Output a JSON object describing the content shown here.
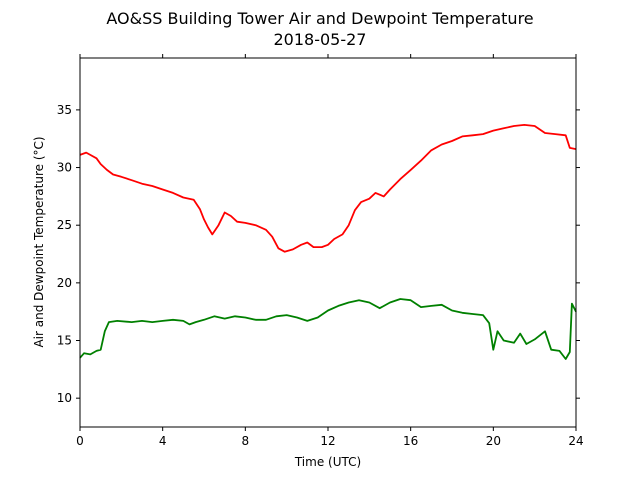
{
  "chart_data": {
    "type": "line",
    "title": "AO&SS Building Tower Air and Dewpoint Temperature",
    "subtitle": "2018-05-27",
    "xlabel": "Time (UTC)",
    "ylabel": "Air and Dewpoint Temperature (°C)",
    "xlim": [
      0,
      24
    ],
    "ylim": [
      7.5,
      39.5
    ],
    "x_ticks": [
      0,
      4,
      8,
      12,
      16,
      20,
      24
    ],
    "y_ticks": [
      10,
      15,
      20,
      25,
      30,
      35
    ],
    "grid": false,
    "legend": "none",
    "series": [
      {
        "color": "#ff0000",
        "points": [
          [
            0.0,
            31.1
          ],
          [
            0.3,
            31.3
          ],
          [
            0.5,
            31.1
          ],
          [
            0.8,
            30.8
          ],
          [
            1.0,
            30.3
          ],
          [
            1.3,
            29.8
          ],
          [
            1.6,
            29.4
          ],
          [
            2.0,
            29.2
          ],
          [
            2.5,
            28.9
          ],
          [
            3.0,
            28.6
          ],
          [
            3.5,
            28.4
          ],
          [
            4.0,
            28.1
          ],
          [
            4.5,
            27.8
          ],
          [
            5.0,
            27.4
          ],
          [
            5.5,
            27.2
          ],
          [
            5.8,
            26.4
          ],
          [
            6.0,
            25.5
          ],
          [
            6.2,
            24.8
          ],
          [
            6.4,
            24.2
          ],
          [
            6.7,
            25.0
          ],
          [
            7.0,
            26.1
          ],
          [
            7.3,
            25.8
          ],
          [
            7.6,
            25.3
          ],
          [
            8.0,
            25.2
          ],
          [
            8.5,
            25.0
          ],
          [
            9.0,
            24.6
          ],
          [
            9.3,
            24.0
          ],
          [
            9.6,
            23.0
          ],
          [
            9.9,
            22.7
          ],
          [
            10.3,
            22.9
          ],
          [
            10.7,
            23.3
          ],
          [
            11.0,
            23.5
          ],
          [
            11.3,
            23.1
          ],
          [
            11.7,
            23.1
          ],
          [
            12.0,
            23.3
          ],
          [
            12.3,
            23.8
          ],
          [
            12.7,
            24.2
          ],
          [
            13.0,
            25.0
          ],
          [
            13.3,
            26.3
          ],
          [
            13.6,
            27.0
          ],
          [
            14.0,
            27.3
          ],
          [
            14.3,
            27.8
          ],
          [
            14.7,
            27.5
          ],
          [
            15.0,
            28.1
          ],
          [
            15.5,
            29.0
          ],
          [
            16.0,
            29.8
          ],
          [
            16.5,
            30.6
          ],
          [
            17.0,
            31.5
          ],
          [
            17.5,
            32.0
          ],
          [
            18.0,
            32.3
          ],
          [
            18.5,
            32.7
          ],
          [
            19.0,
            32.8
          ],
          [
            19.5,
            32.9
          ],
          [
            20.0,
            33.2
          ],
          [
            20.5,
            33.4
          ],
          [
            21.0,
            33.6
          ],
          [
            21.5,
            33.7
          ],
          [
            22.0,
            33.6
          ],
          [
            22.5,
            33.0
          ],
          [
            23.0,
            32.9
          ],
          [
            23.5,
            32.8
          ],
          [
            23.7,
            31.7
          ],
          [
            24.0,
            31.6
          ]
        ]
      },
      {
        "color": "#008000",
        "points": [
          [
            0.0,
            13.5
          ],
          [
            0.2,
            13.9
          ],
          [
            0.5,
            13.8
          ],
          [
            0.8,
            14.1
          ],
          [
            1.0,
            14.2
          ],
          [
            1.2,
            15.8
          ],
          [
            1.4,
            16.6
          ],
          [
            1.8,
            16.7
          ],
          [
            2.5,
            16.6
          ],
          [
            3.0,
            16.7
          ],
          [
            3.5,
            16.6
          ],
          [
            4.0,
            16.7
          ],
          [
            4.5,
            16.8
          ],
          [
            5.0,
            16.7
          ],
          [
            5.3,
            16.4
          ],
          [
            5.6,
            16.6
          ],
          [
            6.0,
            16.8
          ],
          [
            6.5,
            17.1
          ],
          [
            7.0,
            16.9
          ],
          [
            7.5,
            17.1
          ],
          [
            8.0,
            17.0
          ],
          [
            8.5,
            16.8
          ],
          [
            9.0,
            16.8
          ],
          [
            9.5,
            17.1
          ],
          [
            10.0,
            17.2
          ],
          [
            10.5,
            17.0
          ],
          [
            11.0,
            16.7
          ],
          [
            11.5,
            17.0
          ],
          [
            12.0,
            17.6
          ],
          [
            12.5,
            18.0
          ],
          [
            13.0,
            18.3
          ],
          [
            13.5,
            18.5
          ],
          [
            14.0,
            18.3
          ],
          [
            14.5,
            17.8
          ],
          [
            15.0,
            18.3
          ],
          [
            15.5,
            18.6
          ],
          [
            16.0,
            18.5
          ],
          [
            16.5,
            17.9
          ],
          [
            17.0,
            18.0
          ],
          [
            17.5,
            18.1
          ],
          [
            18.0,
            17.6
          ],
          [
            18.5,
            17.4
          ],
          [
            19.0,
            17.3
          ],
          [
            19.5,
            17.2
          ],
          [
            19.8,
            16.5
          ],
          [
            20.0,
            14.2
          ],
          [
            20.2,
            15.8
          ],
          [
            20.5,
            15.0
          ],
          [
            21.0,
            14.8
          ],
          [
            21.3,
            15.6
          ],
          [
            21.6,
            14.7
          ],
          [
            22.0,
            15.1
          ],
          [
            22.5,
            15.8
          ],
          [
            22.8,
            14.2
          ],
          [
            23.2,
            14.1
          ],
          [
            23.5,
            13.4
          ],
          [
            23.7,
            14.0
          ],
          [
            23.8,
            18.2
          ],
          [
            24.0,
            17.5
          ]
        ]
      }
    ]
  }
}
